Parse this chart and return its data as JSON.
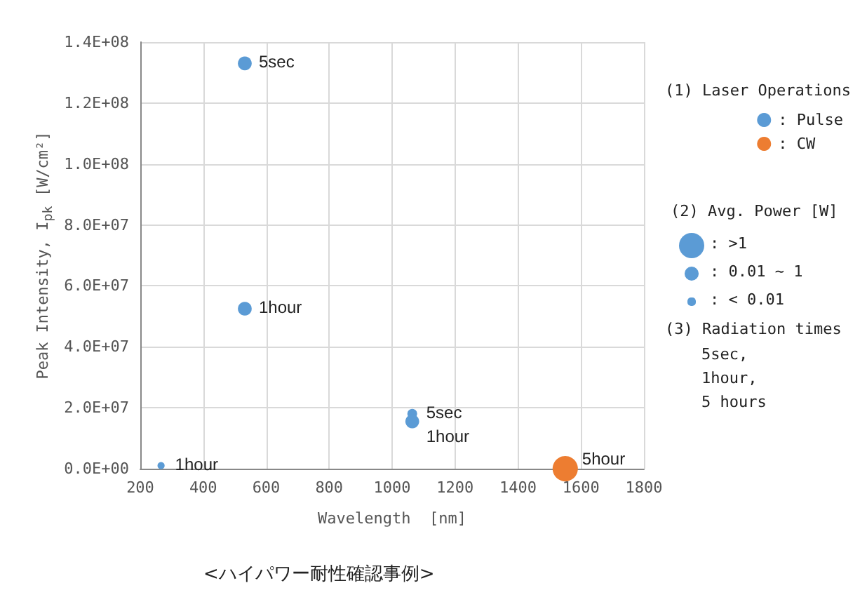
{
  "chart_data": {
    "type": "bubble",
    "xlabel": "Wavelength  [nm]",
    "ylabel": "Peak Intensity, I$_{pk}$ [W/cm²]",
    "legend_title": "(1) Laser Operations",
    "xlim": [
      200,
      1800
    ],
    "xticks": [
      200,
      400,
      600,
      800,
      1000,
      1200,
      1400,
      1600,
      1800
    ],
    "ylim": [
      0,
      140000000
    ],
    "yticks": [
      {
        "value": 0,
        "label": "0.0E+00"
      },
      {
        "value": 20000000,
        "label": "2.0E+07"
      },
      {
        "value": 40000000,
        "label": "4.0E+07"
      },
      {
        "value": 60000000,
        "label": "6.0E+07"
      },
      {
        "value": 80000000,
        "label": "8.0E+07"
      },
      {
        "value": 100000000,
        "label": "1.0E+08"
      },
      {
        "value": 120000000,
        "label": "1.2E+08"
      },
      {
        "value": 140000000,
        "label": "1.4E+08"
      }
    ],
    "grid": true,
    "legend": "right",
    "marker": "circle",
    "series": [
      {
        "name": ": Pulse",
        "color": "#5b9bd5",
        "x": [
          532,
          532,
          1064,
          1064,
          266
        ],
        "values": [
          133000000,
          52500000,
          18000000,
          15500000,
          1000000
        ],
        "sizes": [
          0.3,
          0.3,
          0.15,
          0.3,
          0.08
        ]
      },
      {
        "name": ": CW",
        "color": "#ed7d31",
        "x": [
          1550
        ],
        "values": [
          0
        ],
        "sizes": [
          1
        ]
      }
    ],
    "annotations": [
      {
        "text": "5sec",
        "x": 532,
        "y": 133000000
      },
      {
        "text": "1hour",
        "x": 532,
        "y": 52500000
      },
      {
        "text": "5sec",
        "x": 1064,
        "y": 18000000
      },
      {
        "text": "1hour",
        "x": 1064,
        "y": 15500000
      },
      {
        "text": "1hour",
        "x": 266,
        "y": 1000000
      },
      {
        "text": "5hour",
        "x": 1550,
        "y": 0
      },
      "(2) Avg. Power [W]",
      ": >1",
      ": 0.01 ~ 1",
      ": < 0.01",
      "(3) Radiation times",
      "5sec,",
      "1hour,",
      "5 hours",
      "<ハイパワー耐性確認事例>"
    ]
  }
}
